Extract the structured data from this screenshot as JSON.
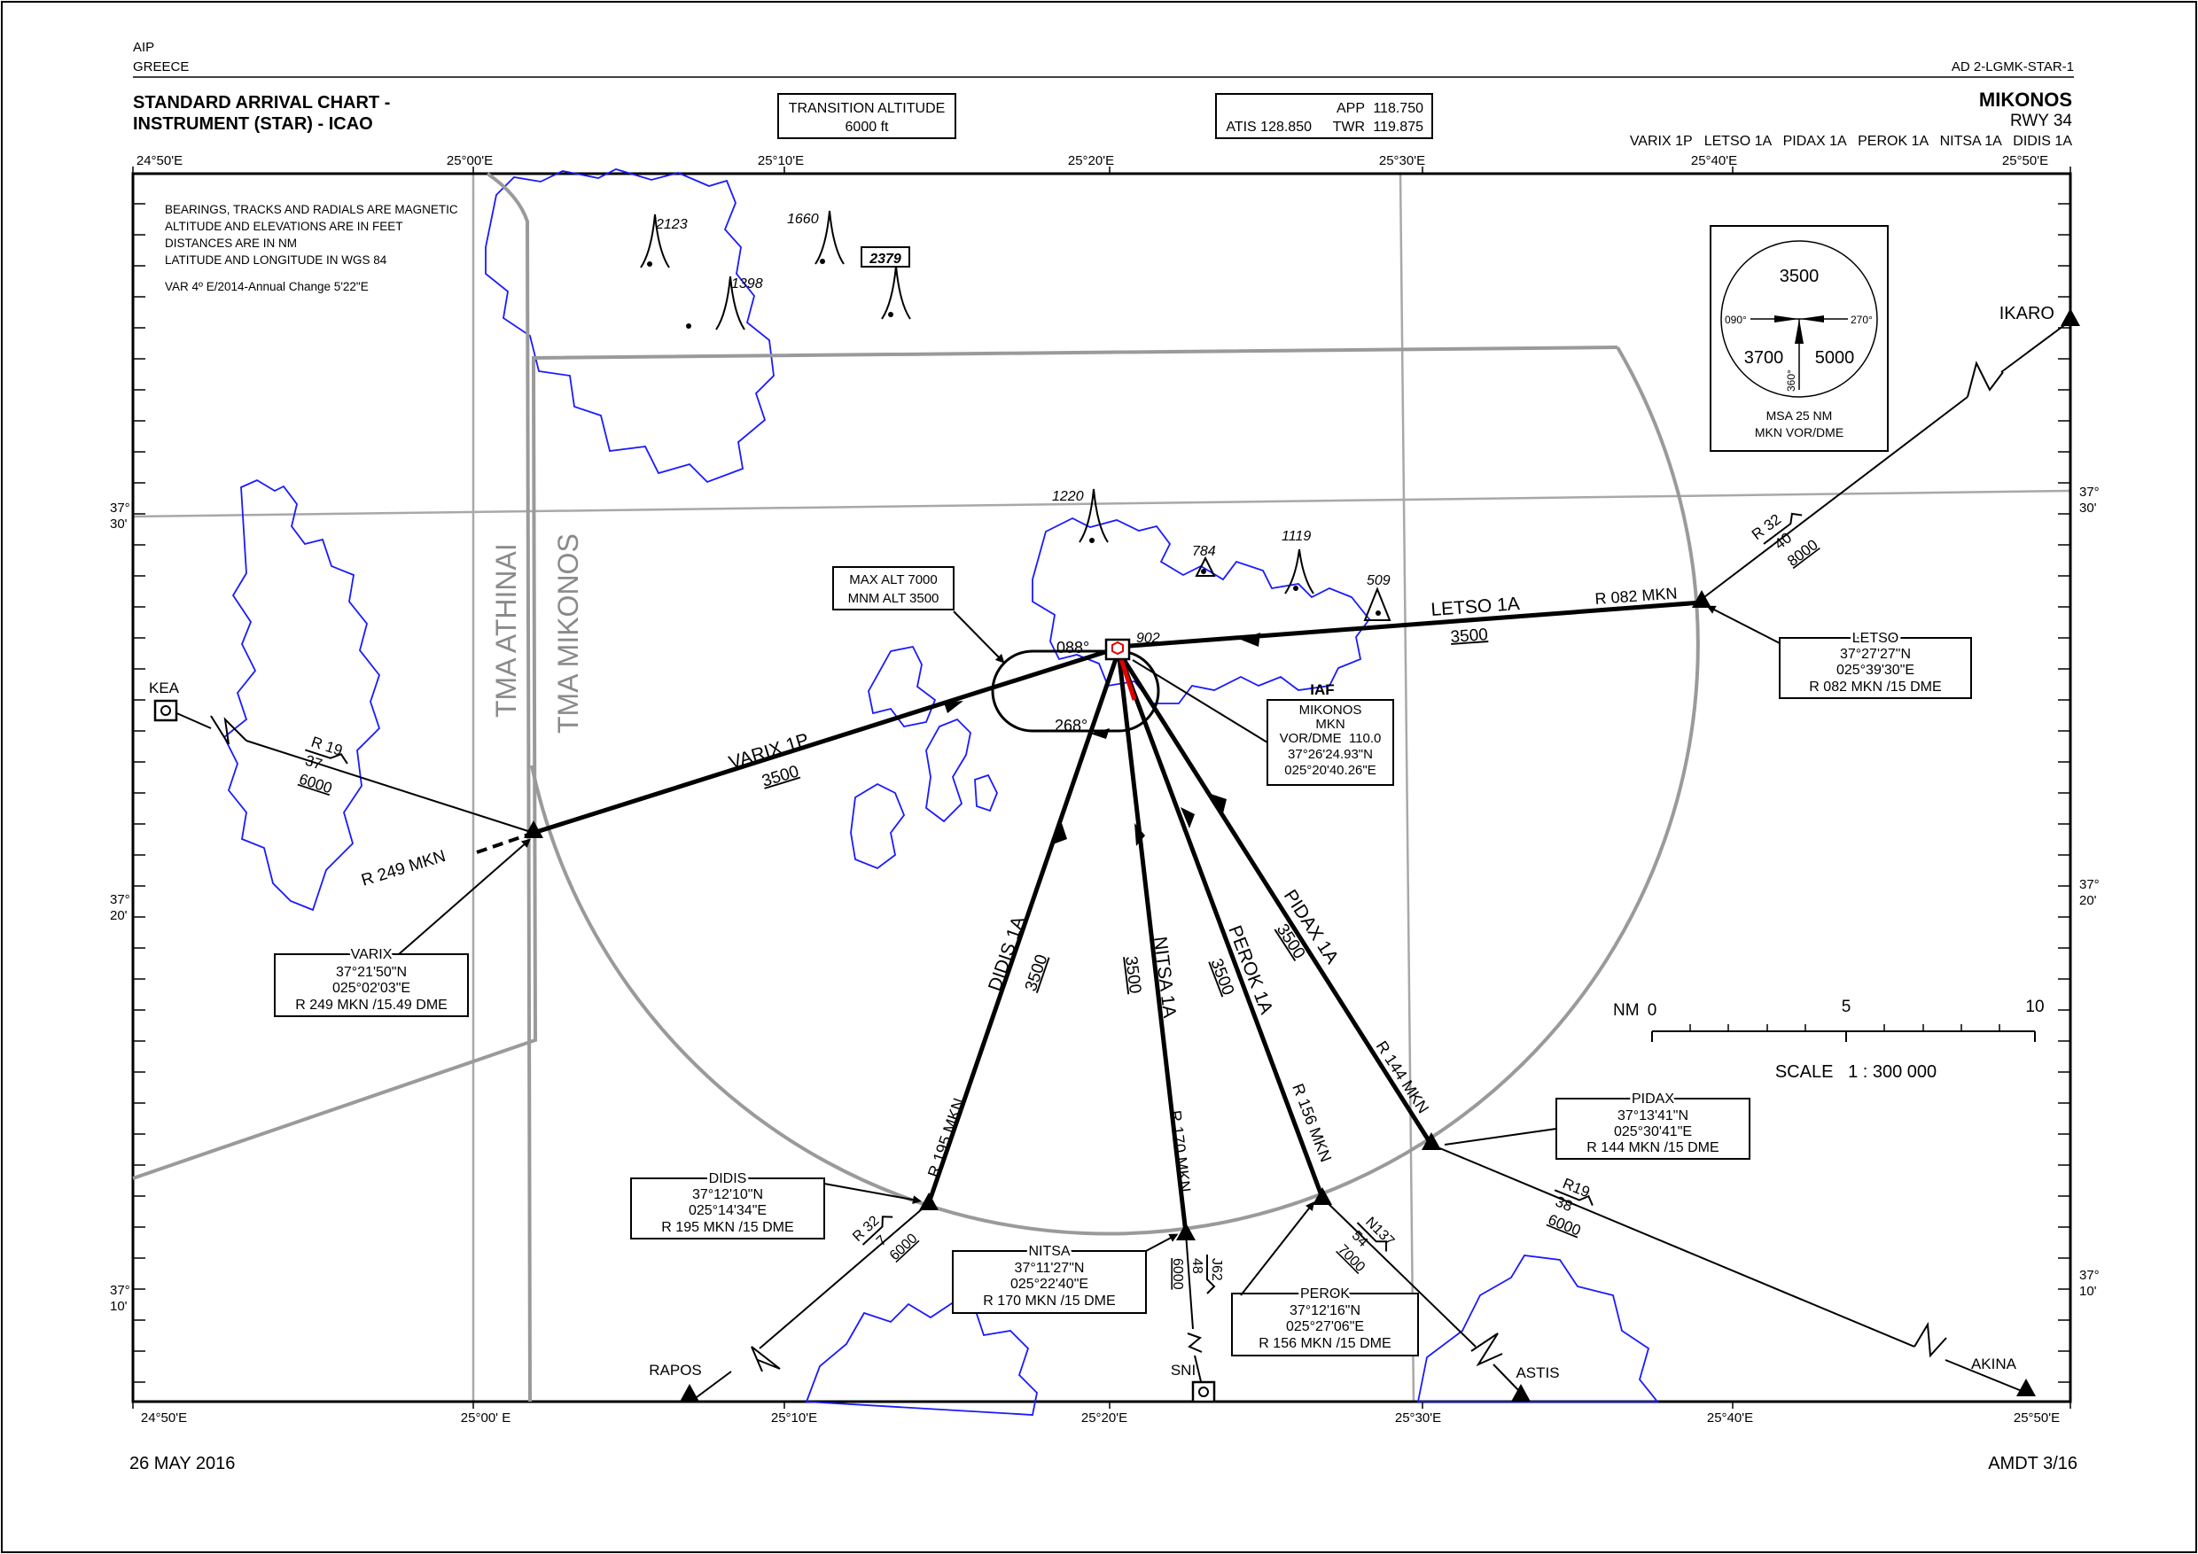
{
  "header": {
    "aip": "AIP",
    "country": "GREECE",
    "page_ref": "AD 2-LGMK-STAR-1",
    "title_line1": "STANDARD ARRIVAL CHART -",
    "title_line2": "INSTRUMENT (STAR) - ICAO",
    "transition_label": "TRANSITION ALTITUDE",
    "transition_value": "6000 ft",
    "app_label": "APP",
    "app_freq": "118.750",
    "atis": "ATIS 128.850",
    "twr_label": "TWR",
    "twr_freq": "119.875",
    "airport": "MIKONOS",
    "runway": "RWY 34",
    "procedures": "VARIX 1P   LETSO 1A   PIDAX 1A   PEROK 1A   NITSA 1A   DIDIS 1A"
  },
  "footer": {
    "date": "26 MAY 2016",
    "amendment": "AMDT 3/16"
  },
  "notes": [
    "BEARINGS, TRACKS AND RADIALS ARE MAGNETIC",
    "ALTITUDE AND ELEVATIONS ARE IN FEET",
    "DISTANCES ARE IN NM",
    "LATITUDE AND LONGITUDE IN WGS 84",
    "VAR 4º E/2014-Annual Change 5'22\"E"
  ],
  "grid": {
    "top_lon": [
      "24°50'E",
      "25°00'E",
      "25°10'E",
      "25°20'E",
      "25°30'E",
      "25°40'E",
      "25°50'E"
    ],
    "bottom_lon": [
      "24°50'E",
      "25°00' E",
      "25°10'E",
      "25°20'E",
      "25°30'E",
      "25°40'E",
      "25°50'E"
    ],
    "lat_deg": [
      "37°",
      "37°",
      "37°"
    ],
    "lat_min": [
      "30'",
      "20'",
      "10'"
    ]
  },
  "msa": {
    "north": "3500",
    "west": "3700",
    "east": "5000",
    "b090": "090°",
    "b270": "270°",
    "b360": "360°",
    "line1": "MSA 25 NM",
    "line2": "MKN VOR/DME"
  },
  "airspace": {
    "tma_athinai": "TMA ATHINAI",
    "tma_mikonos": "TMA MIKONOS"
  },
  "holding": {
    "max_alt": "MAX ALT 7000",
    "mnm_alt": "MNM ALT 3500",
    "inbound": "088°",
    "outbound": "268°",
    "elev": "902"
  },
  "vor": {
    "iaf": "IAF",
    "name": "MIKONOS",
    "ident": "MKN",
    "freq": "VOR/DME  110.0",
    "lat": "37°26'24.93\"N",
    "lon": "025°20'40.26\"E"
  },
  "elevations": [
    "2123",
    "1660",
    "2379",
    "1398",
    "1220",
    "784",
    "1119",
    "509"
  ],
  "routes": {
    "varix": "VARIX 1P",
    "letso": "LETSO 1A",
    "pidax": "PIDAX 1A",
    "perok": "PEROK 1A",
    "nitsa": "NITSA 1A",
    "didis": "DIDIS 1A",
    "alt": "3500",
    "r082": "R 082 MKN",
    "r249": "R 249 MKN",
    "r144": "R 144 MKN",
    "r156": "R 156 MKN",
    "r170": "R 170 MKN",
    "r195": "R 195 MKN"
  },
  "feeders": {
    "kea": {
      "radial": "R 19",
      "dist": "37",
      "alt": "6000"
    },
    "ikaro": {
      "radial": "R 32",
      "dist": "40",
      "alt": "8000"
    },
    "akina": {
      "radial": "R19",
      "dist": "38",
      "alt": "6000"
    },
    "astis": {
      "radial": "N137",
      "dist": "54",
      "alt": "7000"
    },
    "sni": {
      "radial": "J62",
      "dist": "48",
      "alt": "6000"
    },
    "rapos": {
      "radial": "R 32",
      "dist": "7",
      "alt": "6000"
    }
  },
  "points": {
    "kea": "KEA",
    "ikaro": "IKARO",
    "akina": "AKINA",
    "astis": "ASTIS",
    "sni": "SNI",
    "rapos": "RAPOS"
  },
  "fixes": {
    "varix": {
      "name": "VARIX",
      "lat": "37°21'50\"N",
      "lon": "025°02'03\"E",
      "radial": "R 249 MKN /15.49 DME"
    },
    "letso": {
      "name": "LETSO",
      "lat": "37°27'27\"N",
      "lon": "025°39'30\"E",
      "radial": "R 082 MKN /15 DME"
    },
    "pidax": {
      "name": "PIDAX",
      "lat": "37°13'41\"N",
      "lon": "025°30'41\"E",
      "radial": "R 144 MKN /15 DME"
    },
    "didis": {
      "name": "DIDIS",
      "lat": "37°12'10\"N",
      "lon": "025°14'34\"E",
      "radial": "R 195 MKN /15 DME"
    },
    "nitsa": {
      "name": "NITSA",
      "lat": "37°11'27\"N",
      "lon": "025°22'40\"E",
      "radial": "R 170 MKN /15 DME"
    },
    "perok": {
      "name": "PEROK",
      "lat": "37°12'16\"N",
      "lon": "025°27'06\"E",
      "radial": "R 156 MKN /15 DME"
    }
  },
  "scale": {
    "nm": "NM",
    "t0": "0",
    "t5": "5",
    "t10": "10",
    "text": "SCALE   1 : 300 000"
  }
}
